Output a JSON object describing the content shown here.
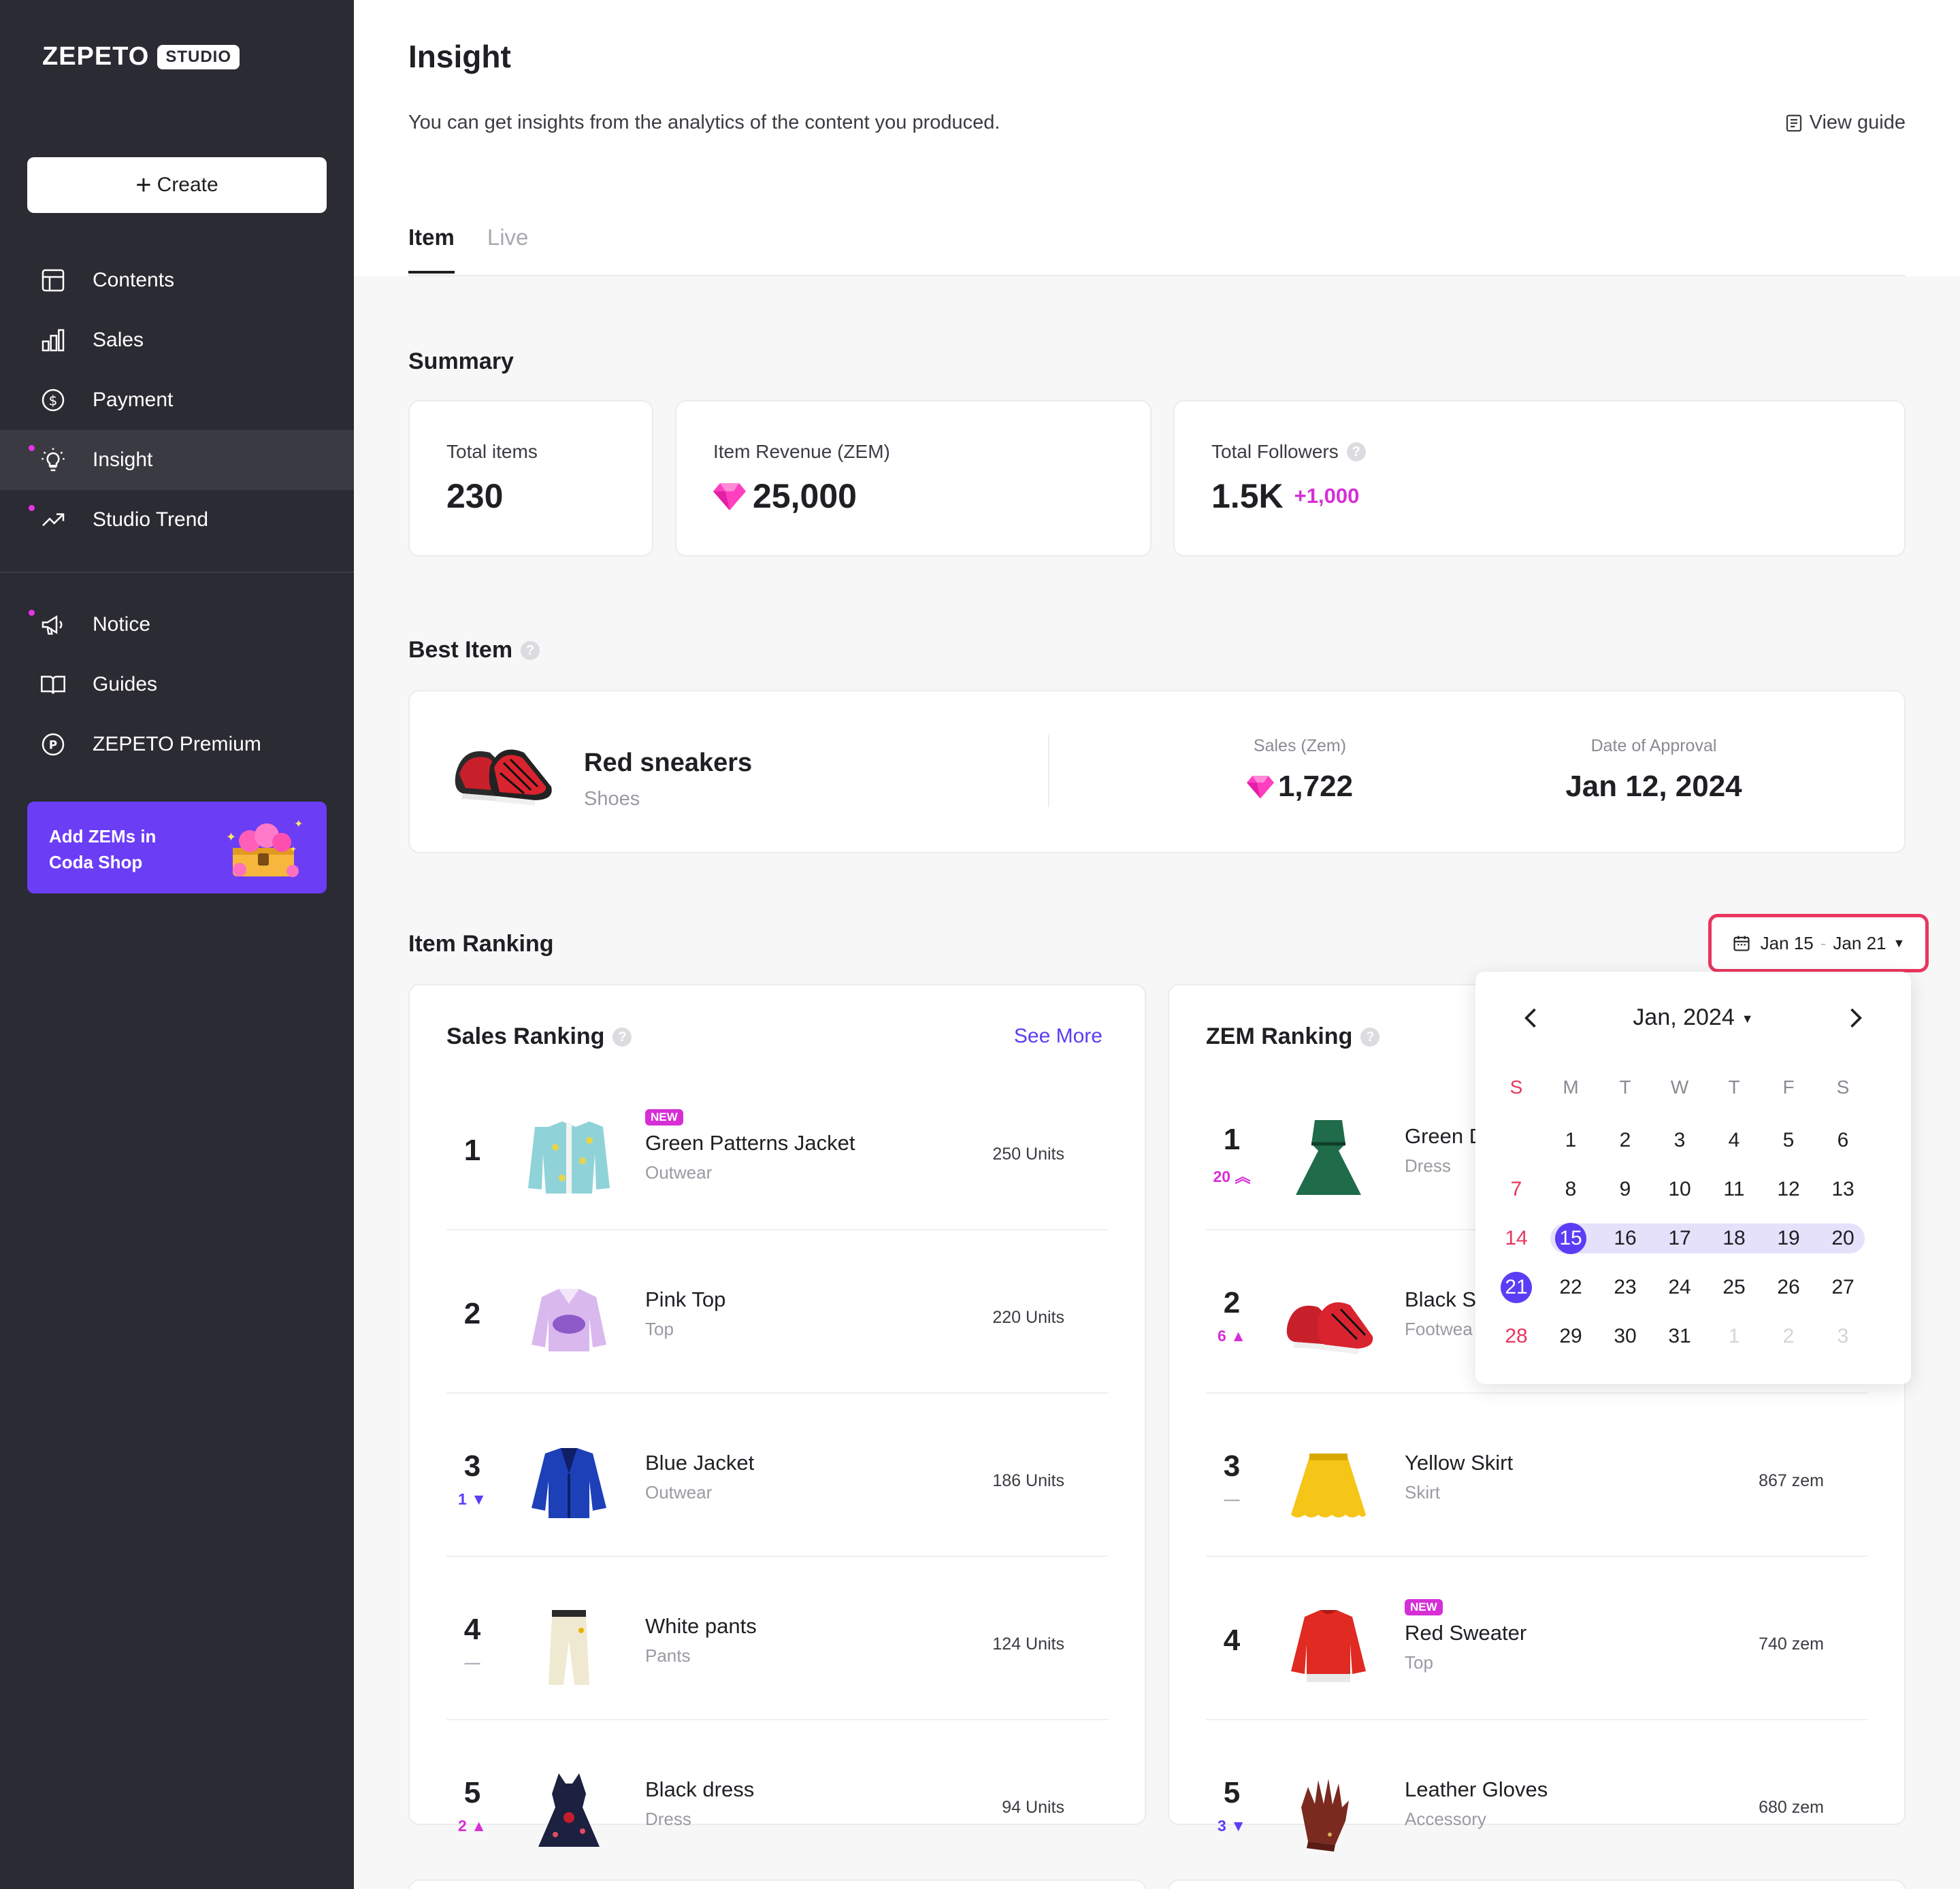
{
  "app": {
    "logo": "ZEPETO",
    "logo_badge": "STUDIO"
  },
  "sidebar": {
    "create_label": "Create",
    "items": [
      {
        "label": "Contents",
        "icon": "layout-icon",
        "active": false,
        "dot": false
      },
      {
        "label": "Sales",
        "icon": "bar-chart-icon",
        "active": false,
        "dot": false
      },
      {
        "label": "Payment",
        "icon": "dollar-circle-icon",
        "active": false,
        "dot": false
      },
      {
        "label": "Insight",
        "icon": "lightbulb-icon",
        "active": true,
        "dot": true
      },
      {
        "label": "Studio Trend",
        "icon": "trend-up-icon",
        "active": false,
        "dot": true
      }
    ],
    "items2": [
      {
        "label": "Notice",
        "icon": "megaphone-icon",
        "dot": true
      },
      {
        "label": "Guides",
        "icon": "book-icon",
        "dot": false
      },
      {
        "label": "ZEPETO Premium",
        "icon": "premium-p-icon",
        "dot": false
      }
    ],
    "banner_text": "Add ZEMs in Coda Shop"
  },
  "header": {
    "title": "Insight",
    "description": "You can get insights from the analytics of the content you produced.",
    "guide_label": "View guide",
    "tabs": [
      {
        "label": "Item",
        "active": true
      },
      {
        "label": "Live",
        "active": false
      }
    ]
  },
  "summary": {
    "title": "Summary",
    "total_items_label": "Total items",
    "total_items_value": "230",
    "revenue_label": "Item Revenue (ZEM)",
    "revenue_value": "25,000",
    "followers_label": "Total Followers",
    "followers_value": "1.5K",
    "followers_delta": "+1,000"
  },
  "best_item": {
    "title": "Best Item",
    "name": "Red sneakers",
    "category": "Shoes",
    "sales_label": "Sales (Zem)",
    "sales_value": "1,722",
    "approval_label": "Date of Approval",
    "approval_value": "Jan 12, 2024"
  },
  "ranking": {
    "title": "Item Ranking",
    "date_start": "Jan 15",
    "date_end": "Jan 21",
    "sales": {
      "title": "Sales Ranking",
      "see_more": "See More",
      "rows": [
        {
          "rank": "1",
          "change": "",
          "dir": "none",
          "new": true,
          "name": "Green Patterns Jacket",
          "category": "Outwear",
          "value": "250 Units",
          "img": "jacket-green"
        },
        {
          "rank": "2",
          "change": "",
          "dir": "none",
          "new": false,
          "name": "Pink Top",
          "category": "Top",
          "value": "220 Units",
          "img": "top-pink"
        },
        {
          "rank": "3",
          "change": "1",
          "dir": "down",
          "new": false,
          "name": "Blue Jacket",
          "category": "Outwear",
          "value": "186 Units",
          "img": "jacket-blue"
        },
        {
          "rank": "4",
          "change": "—",
          "dir": "same",
          "new": false,
          "name": "White pants",
          "category": "Pants",
          "value": "124 Units",
          "img": "pants-white"
        },
        {
          "rank": "5",
          "change": "2",
          "dir": "up",
          "new": false,
          "name": "Black dress",
          "category": "Dress",
          "value": "94 Units",
          "img": "dress-black"
        }
      ]
    },
    "zem": {
      "title": "ZEM Ranking",
      "rows": [
        {
          "rank": "1",
          "change": "20",
          "dir": "up2",
          "new": false,
          "name": "Green D",
          "category": "Dress",
          "value": "",
          "img": "dress-green"
        },
        {
          "rank": "2",
          "change": "6",
          "dir": "up",
          "new": false,
          "name": "Black S",
          "category": "Footwea",
          "value": "",
          "img": "sneakers"
        },
        {
          "rank": "3",
          "change": "—",
          "dir": "same",
          "new": false,
          "name": "Yellow Skirt",
          "category": "Skirt",
          "value": "867 zem",
          "img": "skirt-yellow"
        },
        {
          "rank": "4",
          "change": "",
          "dir": "none",
          "new": true,
          "name": "Red Sweater",
          "category": "Top",
          "value": "740 zem",
          "img": "sweater-red"
        },
        {
          "rank": "5",
          "change": "3",
          "dir": "down",
          "new": false,
          "name": "Leather Gloves",
          "category": "Accessory",
          "value": "680 zem",
          "img": "gloves"
        }
      ]
    },
    "new_badge": "NEW"
  },
  "calendar": {
    "month_label": "Jan, 2024",
    "weekdays": [
      "S",
      "M",
      "T",
      "W",
      "T",
      "F",
      "S"
    ],
    "weeks": [
      [
        "",
        "1",
        "2",
        "3",
        "4",
        "5",
        "6"
      ],
      [
        "7",
        "8",
        "9",
        "10",
        "11",
        "12",
        "13"
      ],
      [
        "14",
        "15",
        "16",
        "17",
        "18",
        "19",
        "20"
      ],
      [
        "21",
        "22",
        "23",
        "24",
        "25",
        "26",
        "27"
      ],
      [
        "28",
        "29",
        "30",
        "31",
        "1",
        "2",
        "3"
      ]
    ],
    "selected_start": "15",
    "selected_end": "21"
  },
  "colors": {
    "sidebar_bg": "#2b2b33",
    "accent_purple": "#5b3df5",
    "accent_pink": "#d62fd6",
    "highlight_red": "#e8365d"
  }
}
